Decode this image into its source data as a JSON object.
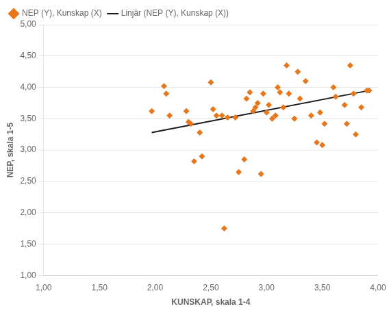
{
  "chart_data": {
    "type": "scatter",
    "xlabel": "KUNSKAP, skala 1-4",
    "ylabel": "NEP, skala 1-5",
    "series": [
      {
        "name": "NEP (Y), Kunskap (X)",
        "type": "scatter",
        "color": "#E8761A",
        "marker": "diamond",
        "x": [
          1.97,
          2.08,
          2.1,
          2.13,
          2.28,
          2.3,
          2.32,
          2.35,
          2.4,
          2.42,
          2.5,
          2.52,
          2.55,
          2.6,
          2.62,
          2.65,
          2.72,
          2.75,
          2.8,
          2.82,
          2.85,
          2.88,
          2.9,
          2.92,
          2.95,
          2.97,
          3.0,
          3.02,
          3.05,
          3.08,
          3.1,
          3.12,
          3.15,
          3.18,
          3.2,
          3.25,
          3.28,
          3.3,
          3.35,
          3.4,
          3.45,
          3.48,
          3.5,
          3.52,
          3.6,
          3.62,
          3.7,
          3.72,
          3.75,
          3.78,
          3.8,
          3.85,
          3.9,
          3.92
        ],
        "values": [
          3.62,
          4.02,
          3.9,
          3.55,
          3.62,
          3.45,
          3.42,
          2.82,
          3.28,
          2.9,
          4.08,
          3.65,
          3.55,
          3.55,
          1.75,
          3.52,
          3.52,
          2.65,
          2.85,
          3.82,
          3.92,
          3.62,
          3.68,
          3.75,
          2.62,
          3.9,
          3.6,
          3.72,
          3.5,
          3.55,
          4.0,
          3.92,
          3.68,
          4.35,
          3.9,
          3.5,
          4.25,
          3.82,
          4.1,
          3.55,
          3.12,
          3.6,
          3.08,
          3.42,
          4.0,
          3.85,
          3.72,
          3.42,
          4.35,
          3.9,
          3.25,
          3.68,
          3.95,
          3.95
        ]
      },
      {
        "name": "Linjär (NEP (Y), Kunskap (X))",
        "type": "line",
        "color": "#1a1a1a",
        "line_style": "solid",
        "x": [
          1.97,
          3.92
        ],
        "values": [
          3.28,
          3.95
        ]
      }
    ],
    "xlim": [
      1.0,
      4.0
    ],
    "ylim": [
      1.0,
      5.0
    ],
    "xticks": [
      {
        "value": 1.0,
        "label": "1,00"
      },
      {
        "value": 1.5,
        "label": "1,50"
      },
      {
        "value": 2.0,
        "label": "2,00"
      },
      {
        "value": 2.5,
        "label": "2,50"
      },
      {
        "value": 3.0,
        "label": "3,00"
      },
      {
        "value": 3.5,
        "label": "3,50"
      },
      {
        "value": 4.0,
        "label": "4,00"
      }
    ],
    "yticks": [
      {
        "value": 1.0,
        "label": "1,00"
      },
      {
        "value": 1.5,
        "label": "1,50"
      },
      {
        "value": 2.0,
        "label": "2,00"
      },
      {
        "value": 2.5,
        "label": "2,50"
      },
      {
        "value": 3.0,
        "label": "3,00"
      },
      {
        "value": 3.5,
        "label": "3,50"
      },
      {
        "value": 4.0,
        "label": "4,00"
      },
      {
        "value": 4.5,
        "label": "4,50"
      },
      {
        "value": 5.0,
        "label": "5,00"
      }
    ],
    "grid": "y",
    "legend": "top"
  }
}
